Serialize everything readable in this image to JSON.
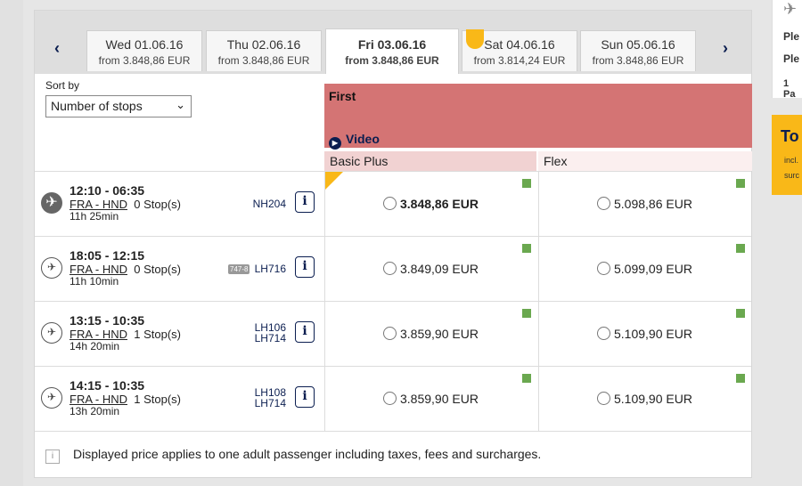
{
  "date_nav": {
    "prev_icon": "‹",
    "next_icon": "›",
    "dates": [
      {
        "day": "Wed 01.06.16",
        "from_price": "from 3.848,86 EUR",
        "selected": false,
        "tag": false
      },
      {
        "day": "Thu 02.06.16",
        "from_price": "from 3.848,86 EUR",
        "selected": false,
        "tag": false
      },
      {
        "day": "Fri 03.06.16",
        "from_price": "from 3.848,86 EUR",
        "selected": true,
        "tag": false
      },
      {
        "day": "Sat 04.06.16",
        "from_price": "from 3.814,24 EUR",
        "selected": false,
        "tag": true
      },
      {
        "day": "Sun 05.06.16",
        "from_price": "from 3.848,86 EUR",
        "selected": false,
        "tag": false
      }
    ]
  },
  "sort": {
    "label": "Sort by",
    "selected": "Number of stops"
  },
  "cabin": {
    "title": "First",
    "video_label": "Video",
    "color": "#d47474"
  },
  "fares": {
    "basic": "Basic Plus",
    "flex": "Flex"
  },
  "flights": [
    {
      "airline_icon": "plane-icon",
      "times": "12:10 - 06:35",
      "route": "FRA - HND",
      "stops": "0 Stop(s)",
      "duration": "11h 25min",
      "equipment": "",
      "flight_numbers": [
        "NH204"
      ],
      "basic_price": "3.848,86 EUR",
      "flex_price": "5.098,86 EUR",
      "best": true
    },
    {
      "airline_icon": "crane-icon",
      "times": "18:05 - 12:15",
      "route": "FRA - HND",
      "stops": "0 Stop(s)",
      "duration": "11h 10min",
      "equipment": "747-8",
      "flight_numbers": [
        "LH716"
      ],
      "basic_price": "3.849,09 EUR",
      "flex_price": "5.099,09 EUR",
      "best": false
    },
    {
      "airline_icon": "crane-icon",
      "times": "13:15 - 10:35",
      "route": "FRA - HND",
      "stops": "1 Stop(s)",
      "duration": "14h 20min",
      "equipment": "",
      "flight_numbers": [
        "LH106",
        "LH714"
      ],
      "basic_price": "3.859,90 EUR",
      "flex_price": "5.109,90 EUR",
      "best": false
    },
    {
      "airline_icon": "crane-icon",
      "times": "14:15 - 10:35",
      "route": "FRA - HND",
      "stops": "1 Stop(s)",
      "duration": "13h 20min",
      "equipment": "",
      "flight_numbers": [
        "LH108",
        "LH714"
      ],
      "basic_price": "3.859,90 EUR",
      "flex_price": "5.109,90 EUR",
      "best": false
    }
  ],
  "footer": {
    "note": "Displayed price applies to one adult passenger including taxes, fees and surcharges."
  },
  "right_panel": {
    "line1": "Ple",
    "line2": "Ple",
    "line3": "1 Pa"
  },
  "total_panel": {
    "title": "To",
    "line1": "incl.",
    "line2": "surc"
  },
  "colors": {
    "accent": "#f9b818",
    "navy": "#0b1e50",
    "availability": "#6aa84f"
  }
}
